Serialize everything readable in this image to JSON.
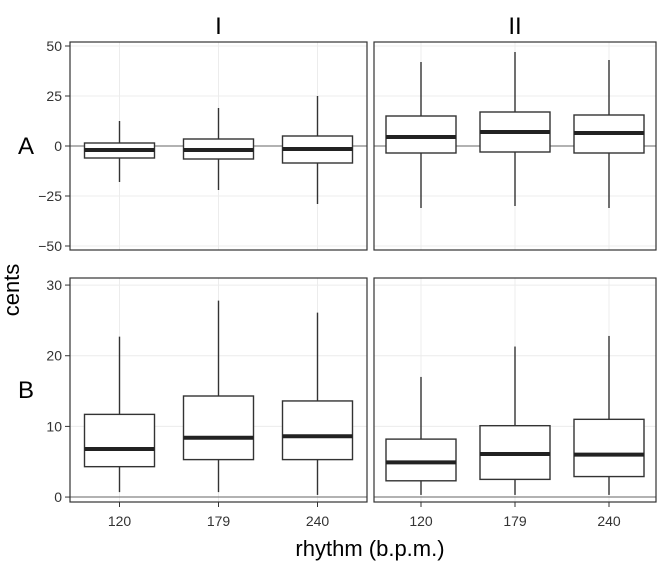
{
  "chart_data": {
    "type": "box",
    "ylabel": "cents",
    "xlabel": "rhythm (b.p.m.)",
    "columns": [
      "I",
      "II"
    ],
    "rows": [
      "A",
      "B"
    ],
    "categories": [
      "120",
      "179",
      "240"
    ],
    "row_yticks": {
      "A": [
        -50,
        -25,
        0,
        25,
        50
      ],
      "B": [
        0,
        10,
        20,
        30
      ]
    },
    "row_yticks_text": {
      "A": [
        "−50",
        "−25",
        "0",
        "25",
        "50"
      ],
      "B": [
        "0",
        "10",
        "20",
        "30"
      ]
    },
    "row_ylim": {
      "A": [
        -52,
        52
      ],
      "B": [
        -0.7,
        31
      ]
    },
    "grid": true,
    "zero_line_rows": [
      "A",
      "B"
    ],
    "panels": [
      {
        "row": "A",
        "col": "I",
        "boxes": [
          {
            "x": "120",
            "whisker_low": -18,
            "q1": -6,
            "median": -2,
            "q3": 1.5,
            "whisker_high": 12.5
          },
          {
            "x": "179",
            "whisker_low": -22,
            "q1": -6.5,
            "median": -2,
            "q3": 3.5,
            "whisker_high": 19
          },
          {
            "x": "240",
            "whisker_low": -29,
            "q1": -8.5,
            "median": -1.5,
            "q3": 5,
            "whisker_high": 25
          }
        ]
      },
      {
        "row": "A",
        "col": "II",
        "boxes": [
          {
            "x": "120",
            "whisker_low": -31,
            "q1": -3.5,
            "median": 4.5,
            "q3": 15,
            "whisker_high": 42
          },
          {
            "x": "179",
            "whisker_low": -30,
            "q1": -3,
            "median": 7,
            "q3": 17,
            "whisker_high": 47
          },
          {
            "x": "240",
            "whisker_low": -31,
            "q1": -3.5,
            "median": 6.5,
            "q3": 15.5,
            "whisker_high": 43
          }
        ]
      },
      {
        "row": "B",
        "col": "I",
        "boxes": [
          {
            "x": "120",
            "whisker_low": 0.7,
            "q1": 4.3,
            "median": 6.8,
            "q3": 11.7,
            "whisker_high": 22.7
          },
          {
            "x": "179",
            "whisker_low": 0.7,
            "q1": 5.3,
            "median": 8.4,
            "q3": 14.3,
            "whisker_high": 27.8
          },
          {
            "x": "240",
            "whisker_low": 0.3,
            "q1": 5.3,
            "median": 8.6,
            "q3": 13.6,
            "whisker_high": 26.1
          }
        ]
      },
      {
        "row": "B",
        "col": "II",
        "boxes": [
          {
            "x": "120",
            "whisker_low": 0.3,
            "q1": 2.3,
            "median": 4.9,
            "q3": 8.2,
            "whisker_high": 17.0
          },
          {
            "x": "179",
            "whisker_low": 0.3,
            "q1": 2.5,
            "median": 6.1,
            "q3": 10.1,
            "whisker_high": 21.3
          },
          {
            "x": "240",
            "whisker_low": 0.3,
            "q1": 2.9,
            "median": 6.0,
            "q3": 11.0,
            "whisker_high": 22.8
          }
        ]
      }
    ]
  }
}
